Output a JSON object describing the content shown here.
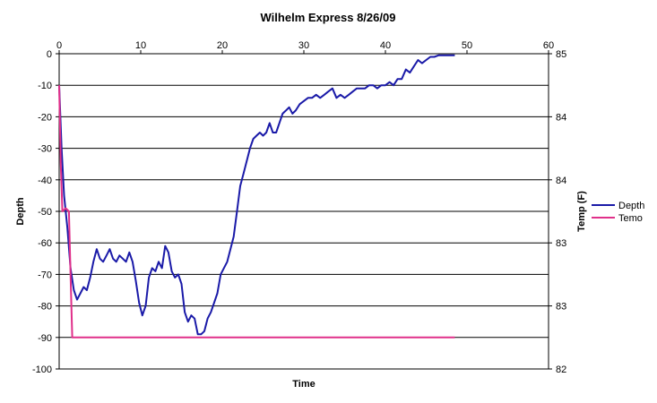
{
  "chart_data": {
    "type": "line",
    "title": "Wilhelm Express 8/26/09",
    "xlabel": "Time",
    "ylabel": "Depth",
    "y2label": "Temp (F)",
    "xlim": [
      0,
      60
    ],
    "ylim": [
      -100,
      0
    ],
    "y2lim": [
      82,
      85
    ],
    "x_ticks": [
      0,
      10,
      20,
      30,
      40,
      50,
      60
    ],
    "y_ticks": [
      0,
      -10,
      -20,
      -30,
      -40,
      -50,
      -60,
      -70,
      -80,
      -90,
      -100
    ],
    "y2_tick_labels": [
      "85",
      "84",
      "84",
      "83",
      "83",
      "82"
    ],
    "grid": "horizontal",
    "legend": "right",
    "series": [
      {
        "name": "Depth",
        "axis": "left",
        "color": "#1a1aa8",
        "x": [
          0,
          0.3,
          0.6,
          1.0,
          1.4,
          1.8,
          2.2,
          2.6,
          3.0,
          3.4,
          3.8,
          4.2,
          4.6,
          5.0,
          5.4,
          5.8,
          6.2,
          6.6,
          7.0,
          7.4,
          7.8,
          8.2,
          8.6,
          9.0,
          9.4,
          9.8,
          10.2,
          10.6,
          11.0,
          11.4,
          11.8,
          12.2,
          12.6,
          13.0,
          13.4,
          13.8,
          14.2,
          14.6,
          15.0,
          15.4,
          15.8,
          16.2,
          16.6,
          17.0,
          17.4,
          17.8,
          18.2,
          18.6,
          19.0,
          19.4,
          19.8,
          20.2,
          20.6,
          21.0,
          21.4,
          21.8,
          22.2,
          22.6,
          23.0,
          23.4,
          23.8,
          24.2,
          24.6,
          25.0,
          25.4,
          25.8,
          26.2,
          26.6,
          27.0,
          27.4,
          27.8,
          28.2,
          28.6,
          29.0,
          29.5,
          30.0,
          30.5,
          31.0,
          31.5,
          32.0,
          32.5,
          33.0,
          33.5,
          34.0,
          34.5,
          35.0,
          35.5,
          36.0,
          36.5,
          37.0,
          37.5,
          38.0,
          38.5,
          39.0,
          39.5,
          40.0,
          40.5,
          41.0,
          41.5,
          42.0,
          42.5,
          43.0,
          43.5,
          44.0,
          44.5,
          45.0,
          45.5,
          46.0,
          46.5,
          47.0,
          47.5,
          48.0,
          48.5
        ],
        "y": [
          -10,
          -30,
          -45,
          -55,
          -68,
          -75,
          -78,
          -76,
          -74,
          -75,
          -71,
          -66,
          -62,
          -65,
          -66,
          -64,
          -62,
          -65,
          -66,
          -64,
          -65,
          -66,
          -63,
          -66,
          -72,
          -79,
          -83,
          -80,
          -71,
          -68,
          -69,
          -66,
          -68,
          -61,
          -63,
          -69,
          -71,
          -70,
          -73,
          -82,
          -85,
          -83,
          -84,
          -89,
          -89,
          -88,
          -84,
          -82,
          -79,
          -76,
          -70,
          -68,
          -66,
          -62,
          -58,
          -50,
          -42,
          -38,
          -34,
          -30,
          -27,
          -26,
          -25,
          -26,
          -25,
          -22,
          -25,
          -25,
          -22,
          -19,
          -18,
          -17,
          -19,
          -18,
          -16,
          -15,
          -14,
          -14,
          -13,
          -14,
          -13,
          -12,
          -11,
          -14,
          -13,
          -14,
          -13,
          -12,
          -11,
          -11,
          -11,
          -10,
          -10,
          -11,
          -10,
          -10,
          -9,
          -10,
          -8,
          -8,
          -5,
          -6,
          -4,
          -2,
          -3,
          -2,
          -1,
          -1,
          -0.5,
          -0.5,
          -0.5,
          -0.5,
          -0.5
        ]
      },
      {
        "name": "Temo",
        "axis": "left",
        "color": "#e0308a",
        "x": [
          0,
          0.2,
          0.4,
          0.8,
          1.2,
          1.4,
          1.6,
          2.0,
          10,
          20,
          30,
          40,
          48.5
        ],
        "y": [
          -10,
          -35,
          -50,
          -49,
          -50,
          -70,
          -90,
          -90,
          -90,
          -90,
          -90,
          -90,
          -90
        ]
      }
    ]
  }
}
